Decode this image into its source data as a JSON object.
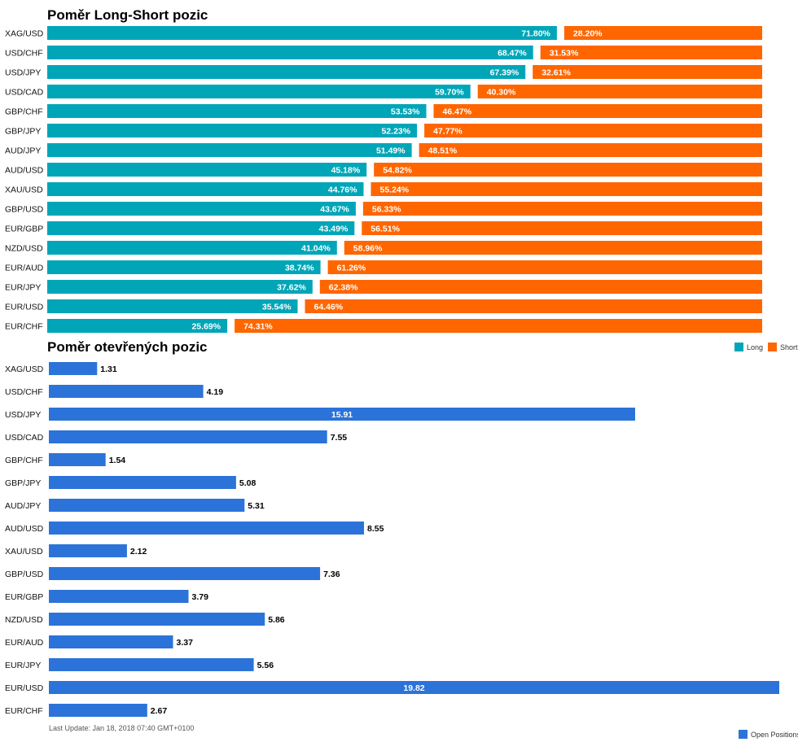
{
  "chart_data": [
    {
      "type": "bar",
      "title": "Poměr Long-Short pozic",
      "orientation": "horizontal",
      "stacked": true,
      "unit": "%",
      "categories": [
        "XAG/USD",
        "USD/CHF",
        "USD/JPY",
        "USD/CAD",
        "GBP/CHF",
        "GBP/JPY",
        "AUD/JPY",
        "AUD/USD",
        "XAU/USD",
        "GBP/USD",
        "EUR/GBP",
        "NZD/USD",
        "EUR/AUD",
        "EUR/JPY",
        "EUR/USD",
        "EUR/CHF"
      ],
      "series": [
        {
          "name": "Long",
          "color": "#00a6b8",
          "values": [
            71.8,
            68.47,
            67.39,
            59.7,
            53.53,
            52.23,
            51.49,
            45.18,
            44.76,
            43.67,
            43.49,
            41.04,
            38.74,
            37.62,
            35.54,
            25.69
          ]
        },
        {
          "name": "Short",
          "color": "#ff6600",
          "values": [
            28.2,
            31.53,
            32.61,
            40.3,
            46.47,
            47.77,
            48.51,
            54.82,
            55.24,
            56.33,
            56.51,
            58.96,
            61.26,
            62.38,
            64.46,
            74.31
          ]
        }
      ],
      "labels": {
        "Long": [
          "71.80%",
          "68.47%",
          "67.39%",
          "59.70%",
          "53.53%",
          "52.23%",
          "51.49%",
          "45.18%",
          "44.76%",
          "43.67%",
          "43.49%",
          "41.04%",
          "38.74%",
          "37.62%",
          "35.54%",
          "25.69%"
        ],
        "Short": [
          "28.20%",
          "31.53%",
          "32.61%",
          "40.30%",
          "46.47%",
          "47.77%",
          "48.51%",
          "54.82%",
          "55.24%",
          "56.33%",
          "56.51%",
          "58.96%",
          "61.26%",
          "62.38%",
          "64.46%",
          "74.31%"
        ]
      },
      "xlim": [
        0,
        100
      ],
      "legend_position": "top-right",
      "grid": false
    },
    {
      "type": "bar",
      "title": "Poměr otevřených pozic",
      "orientation": "horizontal",
      "categories": [
        "XAG/USD",
        "USD/CHF",
        "USD/JPY",
        "USD/CAD",
        "GBP/CHF",
        "GBP/JPY",
        "AUD/JPY",
        "AUD/USD",
        "XAU/USD",
        "GBP/USD",
        "EUR/GBP",
        "NZD/USD",
        "EUR/AUD",
        "EUR/JPY",
        "EUR/USD",
        "EUR/CHF"
      ],
      "series": [
        {
          "name": "Open Positions",
          "color": "#2b73d9",
          "values": [
            1.31,
            4.19,
            15.91,
            7.55,
            1.54,
            5.08,
            5.31,
            8.55,
            2.12,
            7.36,
            3.79,
            5.86,
            3.37,
            5.56,
            19.82,
            2.67
          ]
        }
      ],
      "labels": [
        "1.31",
        "4.19",
        "15.91",
        "7.55",
        "1.54",
        "5.08",
        "5.31",
        "8.55",
        "2.12",
        "7.36",
        "3.79",
        "5.86",
        "3.37",
        "5.56",
        "19.82",
        "2.67"
      ],
      "xlim": [
        0,
        19.82
      ],
      "legend_position": "bottom-right",
      "grid": false
    }
  ],
  "footer": {
    "last_update": "Last Update: Jan 18, 2018 07:40 GMT+0100"
  }
}
